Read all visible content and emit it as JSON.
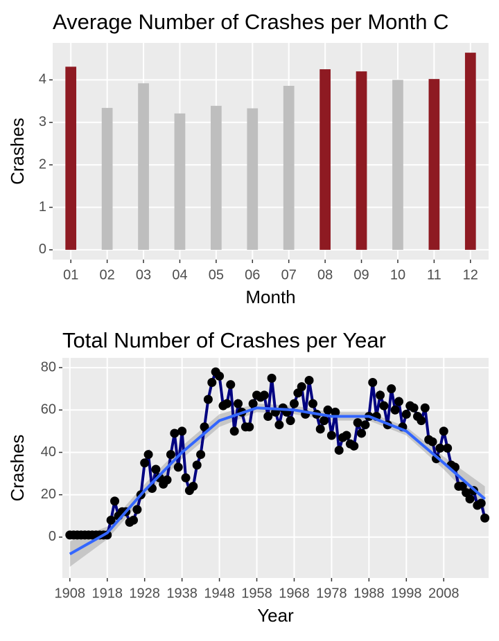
{
  "chart_data": [
    {
      "type": "bar",
      "title": "Average Number of Crashes per Month C",
      "x_label": "Month",
      "y_label": "Crashes",
      "categories": [
        "01",
        "02",
        "03",
        "04",
        "05",
        "06",
        "07",
        "08",
        "09",
        "10",
        "11",
        "12"
      ],
      "values": [
        4.31,
        3.34,
        3.92,
        3.21,
        3.39,
        3.33,
        3.86,
        4.25,
        4.2,
        4.0,
        4.02,
        4.64
      ],
      "colors": [
        "#8e1a22",
        "#bebebe",
        "#bebebe",
        "#bebebe",
        "#bebebe",
        "#bebebe",
        "#bebebe",
        "#8e1a22",
        "#8e1a22",
        "#bebebe",
        "#8e1a22",
        "#8e1a22"
      ],
      "ylim": [
        -0.23,
        4.87
      ],
      "yticks": [
        0,
        1,
        2,
        3,
        4
      ],
      "grid": true
    },
    {
      "type": "line",
      "title": "Total Number of Crashes per Year",
      "x_label": "Year",
      "y_label": "Crashes",
      "x": [
        1908,
        1909,
        1910,
        1911,
        1912,
        1913,
        1914,
        1915,
        1916,
        1917,
        1918,
        1919,
        1920,
        1921,
        1922,
        1923,
        1924,
        1925,
        1926,
        1927,
        1928,
        1929,
        1930,
        1931,
        1932,
        1933,
        1934,
        1935,
        1936,
        1937,
        1938,
        1939,
        1940,
        1941,
        1942,
        1943,
        1944,
        1945,
        1946,
        1947,
        1948,
        1949,
        1950,
        1951,
        1952,
        1953,
        1954,
        1955,
        1956,
        1957,
        1958,
        1959,
        1960,
        1961,
        1962,
        1963,
        1964,
        1965,
        1966,
        1967,
        1968,
        1969,
        1970,
        1971,
        1972,
        1973,
        1974,
        1975,
        1976,
        1977,
        1978,
        1979,
        1980,
        1981,
        1982,
        1983,
        1984,
        1985,
        1986,
        1987,
        1988,
        1989,
        1990,
        1991,
        1992,
        1993,
        1994,
        1995,
        1996,
        1997,
        1998,
        1999,
        2000,
        2001,
        2002,
        2003,
        2004,
        2005,
        2006,
        2007,
        2008,
        2009,
        2010,
        2011,
        2012,
        2013,
        2014,
        2015,
        2016,
        2017,
        2018,
        2019
      ],
      "series": [
        {
          "color": "#000080",
          "values": [
            1,
            1,
            1,
            1,
            1,
            1,
            1,
            1,
            1,
            1,
            1,
            8,
            17,
            10,
            12,
            12,
            7,
            8,
            13,
            20,
            35,
            39,
            23,
            32,
            28,
            25,
            27,
            39,
            49,
            33,
            50,
            28,
            22,
            24,
            34,
            39,
            52,
            65,
            73,
            78,
            76,
            62,
            63,
            72,
            50,
            63,
            59,
            52,
            52,
            63,
            67,
            66,
            67,
            57,
            75,
            59,
            53,
            61,
            59,
            55,
            63,
            68,
            71,
            58,
            74,
            63,
            58,
            51,
            55,
            60,
            48,
            59,
            41,
            47,
            48,
            44,
            43,
            54,
            49,
            53,
            57,
            73,
            57,
            67,
            62,
            53,
            70,
            60,
            64,
            52,
            58,
            62,
            61,
            57,
            55,
            61,
            46,
            45,
            37,
            42,
            50,
            42,
            34,
            33,
            24,
            24,
            21,
            18,
            22,
            15,
            16,
            9
          ]
        }
      ],
      "trend": {
        "color": "#3366ff",
        "x": [
          1908,
          1918,
          1928,
          1938,
          1948,
          1958,
          1968,
          1978,
          1988,
          1998,
          2008,
          2019
        ],
        "values": [
          -8,
          2,
          22,
          40,
          55,
          61,
          60,
          57,
          57,
          50,
          35,
          18
        ],
        "lower": [
          -14,
          -1,
          19,
          37,
          52,
          59,
          58,
          55,
          55,
          48,
          32,
          12
        ],
        "upper": [
          -2,
          5,
          25,
          43,
          58,
          63,
          62,
          59,
          59,
          52,
          38,
          24
        ]
      },
      "xlim": [
        1906,
        2020
      ],
      "xticks": [
        1908,
        1918,
        1928,
        1938,
        1948,
        1958,
        1968,
        1978,
        1988,
        1998,
        2008
      ],
      "ylim": [
        -19.3,
        84.6
      ],
      "yticks": [
        0,
        20,
        40,
        60,
        80
      ],
      "grid": true
    }
  ]
}
